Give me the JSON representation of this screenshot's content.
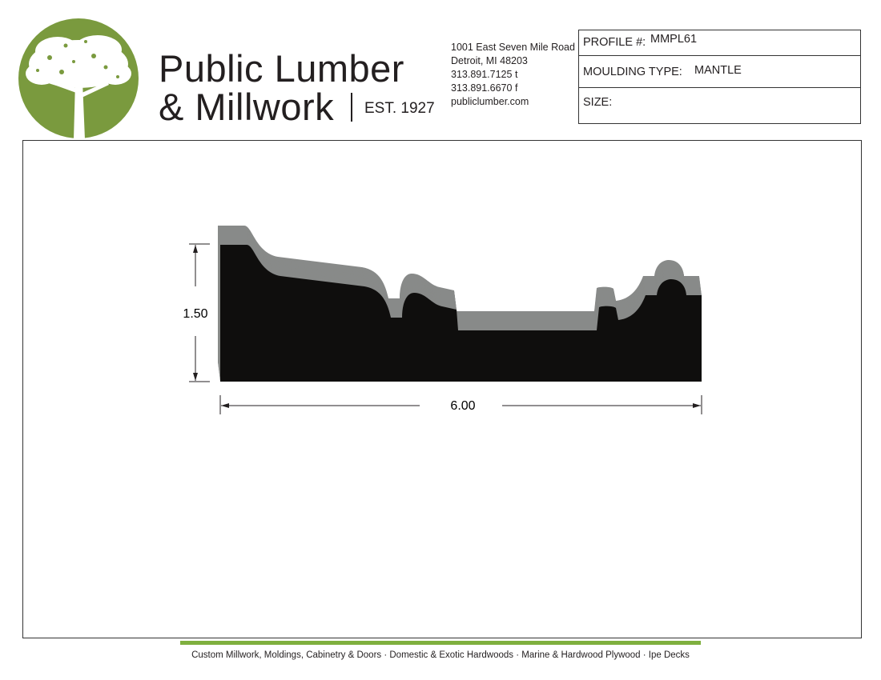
{
  "company": {
    "name_line1": "Public Lumber",
    "name_line2": "& Millwork",
    "established": "EST. 1927",
    "brand_color": "#7a9a3e"
  },
  "address": {
    "street": "1001 East Seven Mile Road",
    "city": "Detroit, MI 48203",
    "phone": "313.891.7125 t",
    "fax": "313.891.6670 f",
    "website": "publiclumber.com"
  },
  "info_box": {
    "profile_label": "PROFILE #:",
    "profile_value": "MMPL61",
    "type_label": "MOULDING TYPE:",
    "type_value": "MANTLE",
    "size_label": "SIZE:"
  },
  "drawing": {
    "height_dim": "1.50",
    "width_dim": "6.00",
    "face_color": "#0f0e0d",
    "side_color": "#888a89"
  },
  "footer": {
    "tagline": "Custom Millwork, Moldings, Cabinetry & Doors · Domestic & Exotic Hardwoods · Marine & Hardwood Plywood · Ipe Decks",
    "bar_color": "#7fb03f"
  }
}
